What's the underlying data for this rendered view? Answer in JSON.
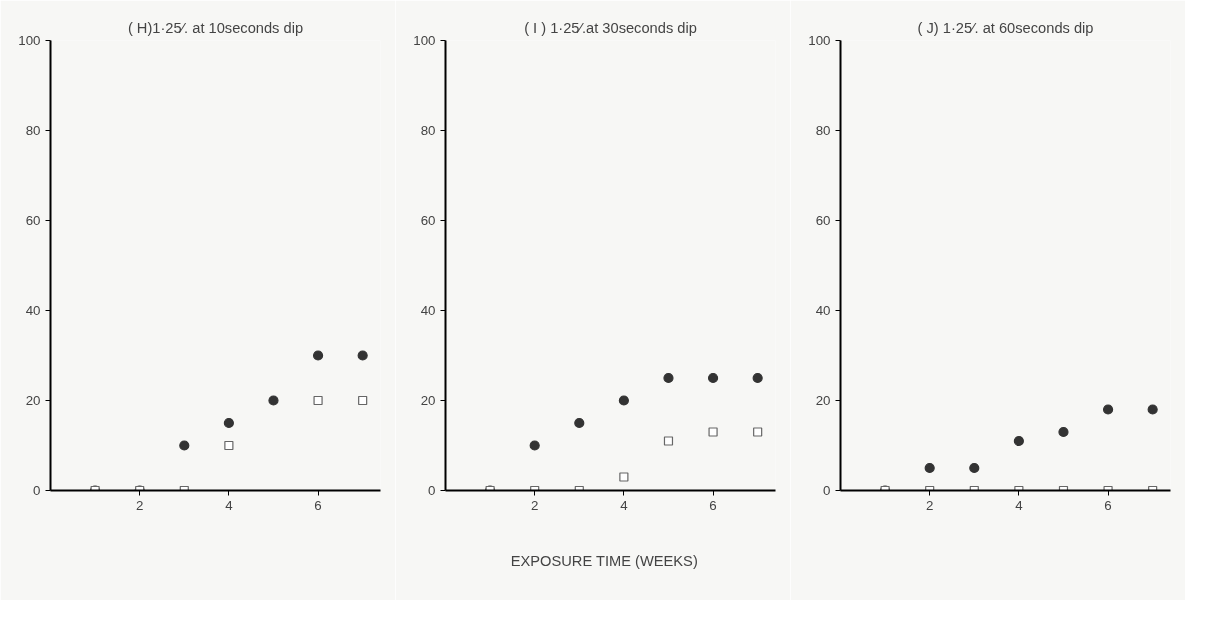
{
  "chart_data": [
    {
      "type": "scatter",
      "title": "( H)1·25⁄. at 10seconds dip",
      "x": [
        1,
        2,
        3,
        4,
        5,
        6,
        7
      ],
      "xlim": [
        0,
        7.4
      ],
      "xticks": [
        2,
        4,
        6
      ],
      "ylim": [
        0,
        100
      ],
      "yticks": [
        0,
        20,
        40,
        60,
        80,
        100
      ],
      "grid": false,
      "series": [
        {
          "color": "#333333",
          "marker": "circle",
          "values": [
            0,
            0,
            10,
            15,
            20,
            30,
            30
          ]
        },
        {
          "color": "#666666",
          "marker": "square",
          "values": [
            0,
            0,
            0,
            10,
            null,
            20,
            20
          ]
        }
      ]
    },
    {
      "type": "scatter",
      "title": "( I ) 1·25⁄.at 30seconds dip",
      "xlabel": "EXPOSURE   TIME  (WEEKS)",
      "x": [
        1,
        2,
        3,
        4,
        5,
        6,
        7
      ],
      "xlim": [
        0,
        7.4
      ],
      "xticks": [
        2,
        4,
        6
      ],
      "ylim": [
        0,
        100
      ],
      "yticks": [
        0,
        20,
        40,
        60,
        80,
        100
      ],
      "grid": false,
      "series": [
        {
          "color": "#333333",
          "marker": "circle",
          "values": [
            0,
            10,
            15,
            20,
            25,
            25,
            25
          ]
        },
        {
          "color": "#666666",
          "marker": "square",
          "values": [
            0,
            0,
            0,
            3,
            11,
            13,
            13
          ]
        }
      ]
    },
    {
      "type": "scatter",
      "title": "( J) 1·25⁄. at 60seconds dip",
      "x": [
        1,
        2,
        3,
        4,
        5,
        6,
        7
      ],
      "xlim": [
        0,
        7.4
      ],
      "xticks": [
        2,
        4,
        6
      ],
      "ylim": [
        0,
        100
      ],
      "yticks": [
        0,
        20,
        40,
        60,
        80,
        100
      ],
      "grid": false,
      "series": [
        {
          "color": "#333333",
          "marker": "circle",
          "values": [
            0,
            5,
            5,
            11,
            13,
            18,
            18
          ]
        },
        {
          "color": "#666666",
          "marker": "square",
          "values": [
            0,
            0,
            0,
            0,
            0,
            0,
            0
          ]
        }
      ]
    }
  ]
}
